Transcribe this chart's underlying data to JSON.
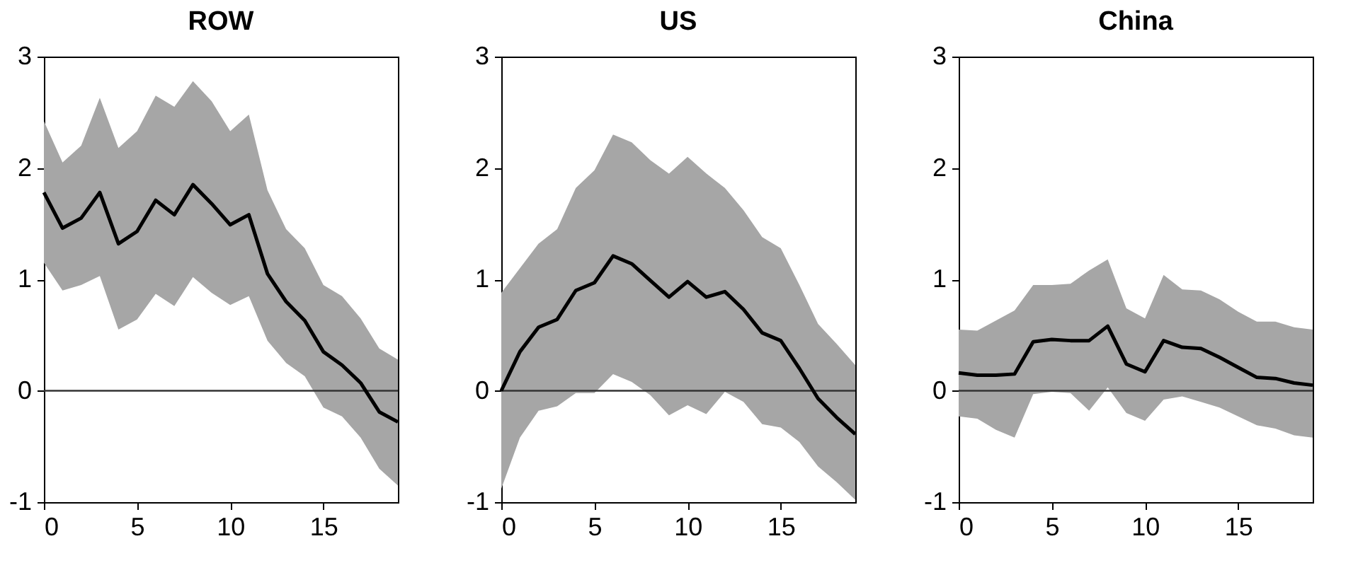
{
  "chart_data": [
    {
      "type": "line",
      "title": "ROW",
      "x": [
        0,
        1,
        2,
        3,
        4,
        5,
        6,
        7,
        8,
        9,
        10,
        11,
        12,
        13,
        14,
        15,
        16,
        17,
        18,
        19
      ],
      "xlim": [
        0,
        19
      ],
      "xticks": [
        0,
        5,
        10,
        15
      ],
      "ylim": [
        -1,
        3
      ],
      "yticks": [
        -1,
        0,
        1,
        2,
        3
      ],
      "grid": false,
      "marker": "none",
      "line_style": "solid",
      "ref_lines": [
        {
          "axis": "y",
          "value": 0,
          "color": "#333333"
        }
      ],
      "series": [
        {
          "color": "#000000",
          "values": [
            1.78,
            1.46,
            1.55,
            1.78,
            1.32,
            1.43,
            1.71,
            1.58,
            1.85,
            1.68,
            1.49,
            1.58,
            1.05,
            0.8,
            0.63,
            0.35,
            0.23,
            0.07,
            -0.19,
            -0.28
          ],
          "upper": [
            2.42,
            2.05,
            2.2,
            2.63,
            2.18,
            2.33,
            2.65,
            2.55,
            2.78,
            2.6,
            2.33,
            2.48,
            1.8,
            1.45,
            1.28,
            0.95,
            0.85,
            0.65,
            0.38,
            0.28
          ],
          "lower": [
            1.15,
            0.9,
            0.95,
            1.03,
            0.55,
            0.64,
            0.87,
            0.76,
            1.02,
            0.88,
            0.77,
            0.85,
            0.45,
            0.25,
            0.13,
            -0.15,
            -0.23,
            -0.42,
            -0.7,
            -0.85
          ]
        }
      ]
    },
    {
      "type": "line",
      "title": "US",
      "x": [
        0,
        1,
        2,
        3,
        4,
        5,
        6,
        7,
        8,
        9,
        10,
        11,
        12,
        13,
        14,
        15,
        16,
        17,
        18,
        19
      ],
      "xlim": [
        0,
        19
      ],
      "xticks": [
        0,
        5,
        10,
        15
      ],
      "ylim": [
        -1,
        3
      ],
      "yticks": [
        -1,
        0,
        1,
        2,
        3
      ],
      "grid": false,
      "marker": "none",
      "line_style": "solid",
      "ref_lines": [
        {
          "axis": "y",
          "value": 0,
          "color": "#333333"
        }
      ],
      "series": [
        {
          "color": "#000000",
          "values": [
            0,
            0.35,
            0.57,
            0.64,
            0.9,
            0.97,
            1.21,
            1.14,
            0.99,
            0.84,
            0.98,
            0.84,
            0.89,
            0.73,
            0.52,
            0.45,
            0.2,
            -0.07,
            -0.24,
            -0.39
          ],
          "upper": [
            0.88,
            1.1,
            1.32,
            1.45,
            1.82,
            1.98,
            2.3,
            2.23,
            2.07,
            1.95,
            2.1,
            1.95,
            1.82,
            1.62,
            1.38,
            1.28,
            0.95,
            0.6,
            0.42,
            0.23
          ],
          "lower": [
            -0.88,
            -0.42,
            -0.18,
            -0.14,
            -0.02,
            -0.02,
            0.15,
            0.08,
            -0.04,
            -0.22,
            -0.13,
            -0.21,
            -0.01,
            -0.1,
            -0.3,
            -0.33,
            -0.46,
            -0.68,
            -0.82,
            -0.98
          ]
        }
      ]
    },
    {
      "type": "line",
      "title": "China",
      "x": [
        0,
        1,
        2,
        3,
        4,
        5,
        6,
        7,
        8,
        9,
        10,
        11,
        12,
        13,
        14,
        15,
        16,
        17,
        18,
        19
      ],
      "xlim": [
        0,
        19
      ],
      "xticks": [
        0,
        5,
        10,
        15
      ],
      "ylim": [
        -1,
        3
      ],
      "yticks": [
        -1,
        0,
        1,
        2,
        3
      ],
      "grid": false,
      "marker": "none",
      "line_style": "solid",
      "ref_lines": [
        {
          "axis": "y",
          "value": 0,
          "color": "#333333"
        }
      ],
      "series": [
        {
          "color": "#000000",
          "values": [
            0.16,
            0.14,
            0.14,
            0.15,
            0.44,
            0.46,
            0.45,
            0.45,
            0.58,
            0.24,
            0.17,
            0.45,
            0.39,
            0.38,
            0.3,
            0.21,
            0.12,
            0.11,
            0.07,
            0.05
          ],
          "upper": [
            0.55,
            0.54,
            0.63,
            0.72,
            0.95,
            0.95,
            0.96,
            1.08,
            1.18,
            0.74,
            0.65,
            1.04,
            0.91,
            0.9,
            0.82,
            0.71,
            0.62,
            0.62,
            0.57,
            0.55
          ],
          "lower": [
            -0.23,
            -0.25,
            -0.35,
            -0.42,
            -0.03,
            -0.01,
            -0.02,
            -0.18,
            0.03,
            -0.2,
            -0.27,
            -0.08,
            -0.05,
            -0.1,
            -0.15,
            -0.23,
            -0.31,
            -0.34,
            -0.4,
            -0.42
          ]
        }
      ]
    }
  ]
}
